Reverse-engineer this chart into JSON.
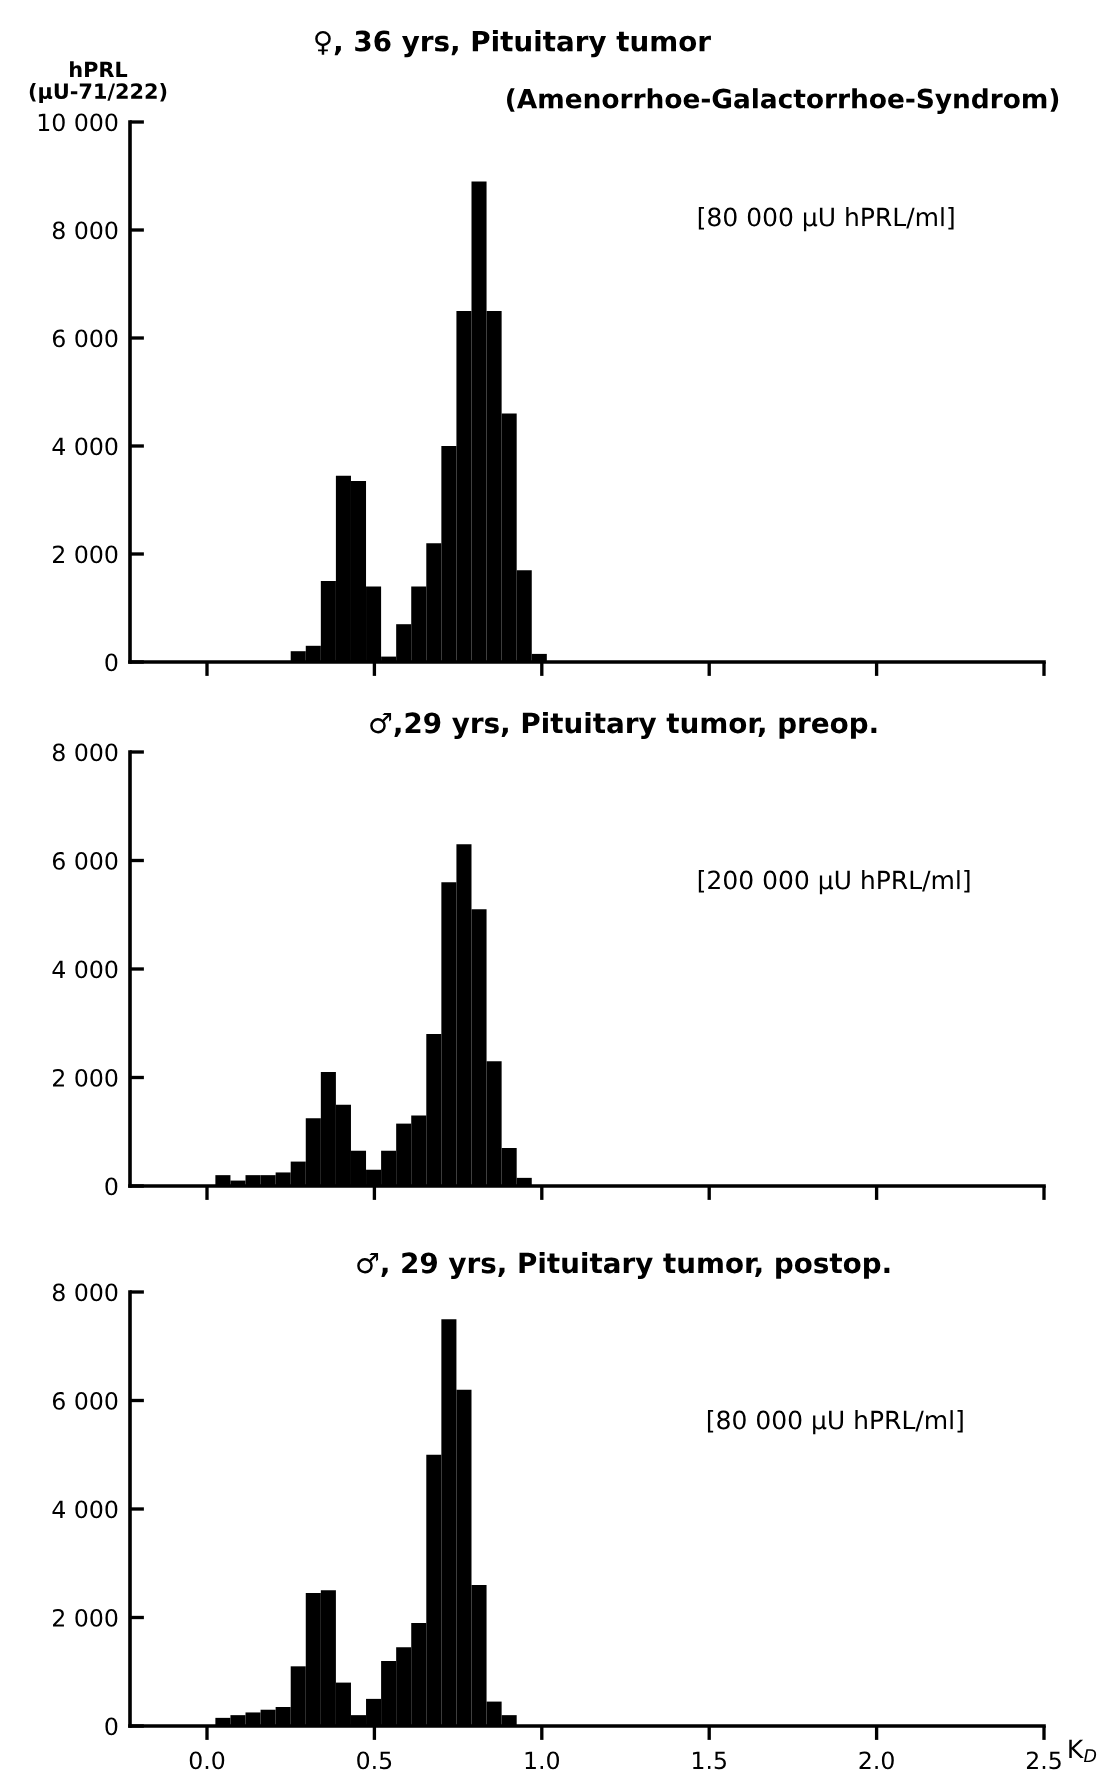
{
  "chart_data": [
    {
      "type": "histogram",
      "title": "♀, 36 yrs, Pituitary tumor",
      "subtitle": "(Amenorrhoe-Galactorrhoe-Syndrom)",
      "ylabel": "hPRL\n(μU-71/222)",
      "annotations": [
        "[80 000 μU hPRL/ml]"
      ],
      "bins": [
        0.025,
        0.07,
        0.115,
        0.16,
        0.205,
        0.25,
        0.295,
        0.34,
        0.385,
        0.43,
        0.475,
        0.52,
        0.565,
        0.61,
        0.655,
        0.7,
        0.745,
        0.79,
        0.835,
        0.88,
        0.925,
        0.97,
        1.015
      ],
      "values": [
        0,
        0,
        0,
        0,
        0,
        200,
        300,
        1500,
        3450,
        3350,
        1400,
        100,
        700,
        1400,
        2200,
        4000,
        6500,
        8900,
        6500,
        4600,
        1700,
        150
      ],
      "color": "#000000",
      "xlim": [
        -0.23,
        2.5
      ],
      "xticks": [
        0,
        0.5,
        1,
        1.5,
        2,
        2.5
      ],
      "ylim": [
        0,
        10000
      ],
      "yticks": [
        0,
        {
          "value": 2000,
          "label": "2 000"
        },
        {
          "value": 4000,
          "label": "4 000"
        },
        {
          "value": 6000,
          "label": "6 000"
        },
        {
          "value": 8000,
          "label": "8 000"
        },
        {
          "value": 10000,
          "label": "10 000"
        }
      ],
      "tick_labels": "y",
      "grid": false,
      "legend": false
    },
    {
      "type": "histogram",
      "title": "♂,29 yrs, Pituitary tumor, preop.",
      "annotations": [
        "[200 000 μU hPRL/ml]"
      ],
      "bins": [
        0.025,
        0.07,
        0.115,
        0.16,
        0.205,
        0.25,
        0.295,
        0.34,
        0.385,
        0.43,
        0.475,
        0.52,
        0.565,
        0.61,
        0.655,
        0.7,
        0.745,
        0.79,
        0.835,
        0.88,
        0.925,
        0.97,
        1.015
      ],
      "values": [
        200,
        100,
        200,
        200,
        250,
        450,
        1250,
        2100,
        1500,
        650,
        300,
        650,
        1150,
        1300,
        2800,
        5600,
        6300,
        5100,
        2300,
        700,
        150,
        null
      ],
      "color": "#000000",
      "xlim": [
        -0.23,
        2.5
      ],
      "xticks": [
        0,
        0.5,
        1,
        1.5,
        2,
        2.5
      ],
      "ylim": [
        0,
        8000
      ],
      "yticks": [
        0,
        {
          "value": 2000,
          "label": "2 000"
        },
        {
          "value": 4000,
          "label": "4 000"
        },
        {
          "value": 6000,
          "label": "6 000"
        },
        {
          "value": 8000,
          "label": "8 000"
        }
      ],
      "tick_labels": "y",
      "grid": false,
      "legend": false
    },
    {
      "type": "histogram",
      "title": "♂, 29 yrs, Pituitary tumor, postop.",
      "xlabel": "K$_{D}$",
      "annotations": [
        "[80 000 μU hPRL/ml]"
      ],
      "bins": [
        0.025,
        0.07,
        0.115,
        0.16,
        0.205,
        0.25,
        0.295,
        0.34,
        0.385,
        0.43,
        0.475,
        0.52,
        0.565,
        0.61,
        0.655,
        0.7,
        0.745,
        0.79,
        0.835,
        0.88,
        0.925,
        0.97,
        1.015
      ],
      "values": [
        150,
        200,
        250,
        300,
        350,
        1100,
        2450,
        2500,
        800,
        200,
        500,
        1200,
        1450,
        1900,
        5000,
        7500,
        6200,
        2600,
        450,
        200,
        null,
        0
      ],
      "color": "#000000",
      "xlim": [
        -0.23,
        2.5
      ],
      "xticks": [
        {
          "value": 0,
          "label": "0.0"
        },
        {
          "value": 0.5,
          "label": "0.5"
        },
        {
          "value": 1,
          "label": "1.0"
        },
        {
          "value": 1.5,
          "label": "1.5"
        },
        {
          "value": 2,
          "label": "2.0"
        },
        {
          "value": 2.5,
          "label": "2.5"
        }
      ],
      "ylim": [
        0,
        8000
      ],
      "yticks": [
        0,
        {
          "value": 2000,
          "label": "2 000"
        },
        {
          "value": 4000,
          "label": "4 000"
        },
        {
          "value": 6000,
          "label": "6 000"
        },
        {
          "value": 8000,
          "label": "8 000"
        }
      ],
      "grid": false,
      "legend": false
    }
  ]
}
